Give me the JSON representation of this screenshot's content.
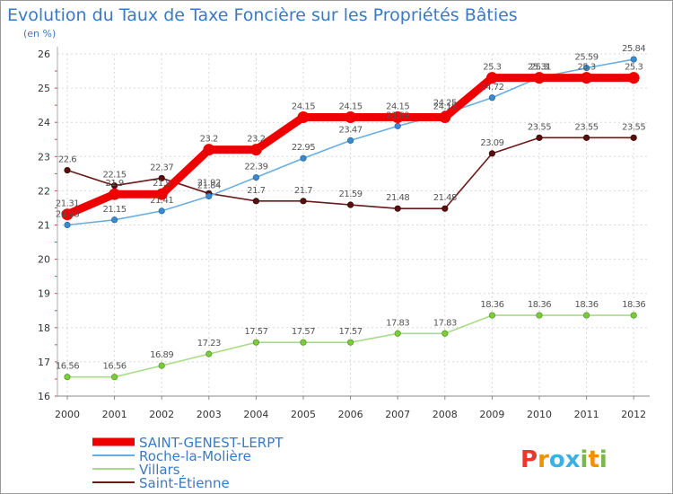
{
  "chart_data": {
    "type": "line",
    "title": "Evolution du Taux de Taxe Foncière sur les Propriétés Bâties",
    "subtitle": "(en %)",
    "x": [
      "2000",
      "2001",
      "2002",
      "2003",
      "2004",
      "2005",
      "2006",
      "2007",
      "2008",
      "2009",
      "2010",
      "2011",
      "2012"
    ],
    "ylim": [
      16,
      26
    ],
    "yticks": [
      16,
      17,
      18,
      19,
      20,
      21,
      22,
      23,
      24,
      25,
      26
    ],
    "grid": true,
    "series": [
      {
        "name": "Saint-Étienne",
        "color": "#6b1a1a",
        "point_color": "#5a0f0f",
        "values": [
          22.6,
          22.15,
          22.37,
          21.92,
          21.7,
          21.7,
          21.59,
          21.48,
          21.48,
          23.09,
          23.55,
          23.55,
          23.55
        ],
        "labels": [
          "22.6",
          "22.15",
          "22.37",
          "21.92",
          "21.7",
          "21.7",
          "21.59",
          "21.48",
          "21.48",
          "23.09",
          "23.55",
          "23.55",
          "23.55"
        ]
      },
      {
        "name": "Villars",
        "color": "#a8dc88",
        "point_color": "#7ccb3c",
        "values": [
          16.56,
          16.56,
          16.89,
          17.23,
          17.57,
          17.57,
          17.57,
          17.83,
          17.83,
          18.36,
          18.36,
          18.36,
          18.36
        ],
        "labels": [
          "16.56",
          "16.56",
          "16.89",
          "17.23",
          "17.57",
          "17.57",
          "17.57",
          "17.83",
          "17.83",
          "18.36",
          "18.36",
          "18.36",
          "18.36"
        ]
      },
      {
        "name": "Roche-la-Molière",
        "color": "#6aaee0",
        "point_color": "#3a8ad0",
        "values": [
          21.0,
          21.15,
          21.41,
          21.84,
          22.39,
          22.95,
          23.47,
          23.89,
          24.25,
          24.72,
          25.31,
          25.59,
          25.84
        ],
        "labels": [
          "20.98",
          "21.15",
          "21.41",
          "21.84",
          "22.39",
          "22.95",
          "23.47",
          "23.89",
          "24.25",
          "24.72",
          "25.31",
          "25.59",
          "25.84"
        ]
      },
      {
        "name": "SAINT-GENEST-LERPT",
        "color": "#ee0000",
        "point_color": "#ee0000",
        "values": [
          21.31,
          21.9,
          21.9,
          23.2,
          23.2,
          24.15,
          24.15,
          24.15,
          24.15,
          25.3,
          25.3,
          25.3,
          25.3
        ],
        "labels": [
          "21.31",
          "21.9",
          "21.9",
          "23.2",
          "23.2",
          "24.15",
          "24.15",
          "24.15",
          "24.15",
          "25.3",
          "25.3",
          "25.3",
          "25.3"
        ]
      }
    ],
    "legend": [
      "SAINT-GENEST-LERPT",
      "Roche-la-Molière",
      "Villars",
      "Saint-Étienne"
    ],
    "legend_position": "bottom-left"
  },
  "brand": {
    "letters": [
      "P",
      "r",
      "o",
      "x",
      "i",
      "t",
      "i"
    ],
    "colors": [
      "#e8392b",
      "#f29100",
      "#3cb1e5",
      "#3cb1e5",
      "#7ab648",
      "#f29100",
      "#7ab648"
    ]
  }
}
